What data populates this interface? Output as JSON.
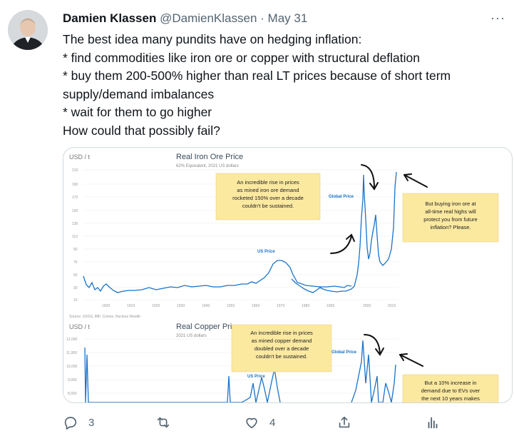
{
  "tweet": {
    "author_name": "Damien Klassen",
    "handle": "@DamienKlassen",
    "separator": "·",
    "date": "May 31",
    "lines": [
      "The best idea many pundits have on hedging inflation:",
      "* find commodities like iron ore or copper with structural deflation",
      "* buy them 200-500% higher than real LT prices because of short term",
      "supply/demand imbalances",
      "* wait for them to go higher",
      "How could that possibly fail?"
    ]
  },
  "media": {
    "iron": {
      "unit": "USD / t",
      "title": "Real Iron Ore Price",
      "subtitle": "62% Equivalent, 2021 US dollars",
      "y_ticks": [
        "210",
        "190",
        "170",
        "150",
        "130",
        "110",
        "90",
        "70",
        "50",
        "30",
        "10"
      ],
      "x_ticks": [
        "1909",
        "1919",
        "1929",
        "1939",
        "1949",
        "1959",
        "1969",
        "1979",
        "1989",
        "1999",
        "2009",
        "2019"
      ],
      "note_left": [
        "An incredible rise in prices",
        "as mined iron ore demand",
        "rocketed 150% over a decade",
        "couldn't be sustained."
      ],
      "note_right": [
        "But buying iron ore at",
        "all-time real highs will",
        "protect you from future",
        "inflation? Please."
      ],
      "label_global": "Global Price",
      "label_us": "US Price",
      "source": "Source: USGS, IMF, Comex, Nucleus Wealth"
    },
    "copper": {
      "unit": "USD / t",
      "title": "Real Copper Price",
      "subtitle": "2021 US dollars",
      "y_ticks": [
        "12,000",
        "11,000",
        "10,000",
        "9,000",
        "8,000"
      ],
      "note_left": [
        "An incredible rise in prices",
        "as mined copper demand",
        "doubled over a decade",
        "couldn't be sustained."
      ],
      "note_right": [
        "But a 10% increase in",
        "demand due to EVs over",
        "the next 10 years makes"
      ],
      "label_global": "Global Price",
      "label_us": "US Price"
    }
  },
  "actions": {
    "reply_count": "3",
    "retweet_count": "",
    "like_count": "4"
  },
  "colors": {
    "series_blue": "#1a73c9",
    "note_yellow": "#fbe9a0",
    "accent_text": "#0f1419",
    "muted_text": "#536471"
  }
}
